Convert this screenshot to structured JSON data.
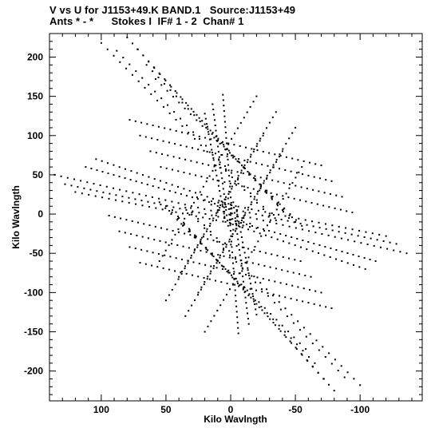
{
  "header": {
    "title_line1": "V vs U for J1153+49.K BAND.1   Source:J1153+49",
    "title_line2": "Ants * - *      Stokes I  IF# 1 - 2  Chan# 1"
  },
  "chart_data": {
    "type": "scatter",
    "xlabel": "Kilo Wavlngth",
    "ylabel": "Kilo Wavlngth",
    "xlim": [
      140,
      -148
    ],
    "ylim": [
      -238,
      230
    ],
    "x_ticks": [
      100,
      50,
      0,
      -50,
      -100
    ],
    "y_ticks": [
      200,
      150,
      100,
      50,
      0,
      -50,
      -100,
      -150,
      -200
    ],
    "grid": false,
    "legend": "none",
    "point_color": "#000000",
    "tracks": [
      {
        "from": [
          100,
          218
        ],
        "to": [
          -30,
          -2
        ],
        "n": 28
      },
      {
        "from": [
          88,
          208
        ],
        "to": [
          -35,
          -8
        ],
        "n": 26
      },
      {
        "from": [
          80,
          225
        ],
        "to": [
          -40,
          5
        ],
        "n": 30
      },
      {
        "from": [
          72,
          210
        ],
        "to": [
          -45,
          -5
        ],
        "n": 28
      },
      {
        "from": [
          65,
          190
        ],
        "to": [
          -50,
          -10
        ],
        "n": 26
      },
      {
        "from": [
          58,
          172
        ],
        "to": [
          -55,
          -15
        ],
        "n": 26
      },
      {
        "from": [
          -100,
          -218
        ],
        "to": [
          30,
          2
        ],
        "n": 28
      },
      {
        "from": [
          -88,
          -208
        ],
        "to": [
          35,
          8
        ],
        "n": 26
      },
      {
        "from": [
          -80,
          -225
        ],
        "to": [
          40,
          -5
        ],
        "n": 30
      },
      {
        "from": [
          -72,
          -210
        ],
        "to": [
          45,
          5
        ],
        "n": 28
      },
      {
        "from": [
          -65,
          -190
        ],
        "to": [
          50,
          10
        ],
        "n": 26
      },
      {
        "from": [
          -58,
          -172
        ],
        "to": [
          55,
          15
        ],
        "n": 26
      },
      {
        "from": [
          136,
          50
        ],
        "to": [
          -10,
          -5
        ],
        "n": 30
      },
      {
        "from": [
          128,
          38
        ],
        "to": [
          -15,
          -12
        ],
        "n": 30
      },
      {
        "from": [
          120,
          28
        ],
        "to": [
          -20,
          -18
        ],
        "n": 28
      },
      {
        "from": [
          112,
          60
        ],
        "to": [
          -5,
          5
        ],
        "n": 28
      },
      {
        "from": [
          104,
          70
        ],
        "to": [
          0,
          12
        ],
        "n": 24
      },
      {
        "from": [
          -136,
          -50
        ],
        "to": [
          10,
          5
        ],
        "n": 30
      },
      {
        "from": [
          -128,
          -38
        ],
        "to": [
          15,
          12
        ],
        "n": 30
      },
      {
        "from": [
          -120,
          -28
        ],
        "to": [
          20,
          18
        ],
        "n": 28
      },
      {
        "from": [
          -112,
          -60
        ],
        "to": [
          5,
          -5
        ],
        "n": 28
      },
      {
        "from": [
          -104,
          -70
        ],
        "to": [
          0,
          -12
        ],
        "n": 24
      },
      {
        "from": [
          6,
          152
        ],
        "to": [
          -2,
          -20
        ],
        "n": 26
      },
      {
        "from": [
          14,
          140
        ],
        "to": [
          2,
          -15
        ],
        "n": 24
      },
      {
        "from": [
          20,
          128
        ],
        "to": [
          4,
          -10
        ],
        "n": 22
      },
      {
        "from": [
          -6,
          -152
        ],
        "to": [
          2,
          20
        ],
        "n": 26
      },
      {
        "from": [
          -14,
          -140
        ],
        "to": [
          -2,
          15
        ],
        "n": 24
      },
      {
        "from": [
          -20,
          -128
        ],
        "to": [
          -4,
          10
        ],
        "n": 22
      },
      {
        "from": [
          78,
          120
        ],
        "to": [
          -70,
          62
        ],
        "n": 34
      },
      {
        "from": [
          70,
          100
        ],
        "to": [
          -78,
          42
        ],
        "n": 34
      },
      {
        "from": [
          62,
          80
        ],
        "to": [
          -86,
          22
        ],
        "n": 34
      },
      {
        "from": [
          54,
          60
        ],
        "to": [
          -94,
          2
        ],
        "n": 34
      },
      {
        "from": [
          -78,
          -120
        ],
        "to": [
          70,
          -62
        ],
        "n": 34
      },
      {
        "from": [
          -70,
          -100
        ],
        "to": [
          78,
          -42
        ],
        "n": 34
      },
      {
        "from": [
          -62,
          -80
        ],
        "to": [
          86,
          -22
        ],
        "n": 34
      },
      {
        "from": [
          -54,
          -60
        ],
        "to": [
          94,
          -2
        ],
        "n": 34
      },
      {
        "from": [
          55,
          -60
        ],
        "to": [
          -20,
          150
        ],
        "n": 32
      },
      {
        "from": [
          40,
          -80
        ],
        "to": [
          -35,
          130
        ],
        "n": 32
      },
      {
        "from": [
          25,
          -100
        ],
        "to": [
          -50,
          110
        ],
        "n": 32
      },
      {
        "from": [
          -55,
          60
        ],
        "to": [
          20,
          -150
        ],
        "n": 32
      },
      {
        "from": [
          -40,
          80
        ],
        "to": [
          35,
          -130
        ],
        "n": 32
      },
      {
        "from": [
          -25,
          100
        ],
        "to": [
          50,
          -110
        ],
        "n": 32
      }
    ]
  }
}
